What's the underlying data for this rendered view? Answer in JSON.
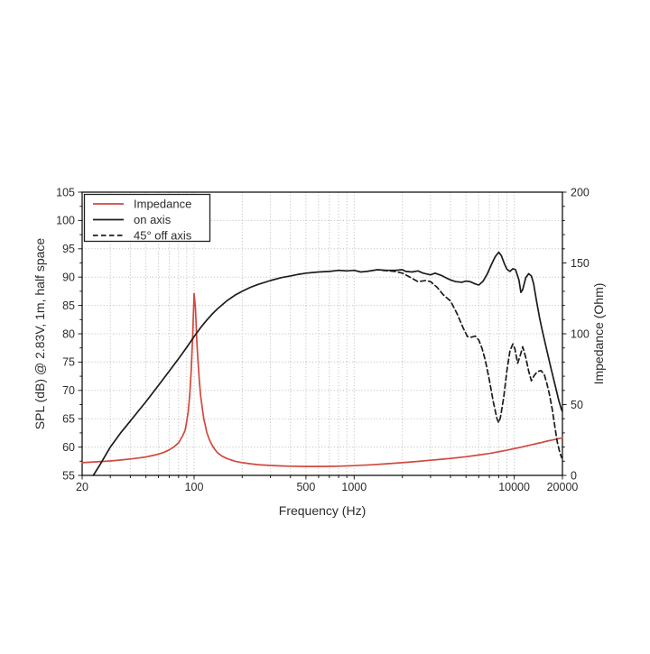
{
  "page": {
    "background": "#ffffff"
  },
  "chart_data": {
    "type": "line",
    "title": "",
    "x_axis": {
      "label": "Frequency (Hz)",
      "scale": "log",
      "min": 20,
      "max": 20000,
      "major_ticks": [
        20,
        100,
        500,
        1000,
        10000,
        20000
      ],
      "major_tick_labels": [
        "20",
        "100",
        "500",
        "1000",
        "10000",
        "20000"
      ],
      "minor_ticks": [
        30,
        40,
        50,
        60,
        70,
        80,
        90,
        200,
        300,
        400,
        600,
        700,
        800,
        900,
        2000,
        3000,
        4000,
        5000,
        6000,
        7000,
        8000,
        9000
      ]
    },
    "y_left": {
      "label": "SPL (dB) @ 2.83V, 1m, half space",
      "min": 55,
      "max": 105,
      "major_step": 5,
      "minor_step": 2.5,
      "major_tick_labels": [
        "55",
        "60",
        "65",
        "70",
        "75",
        "80",
        "85",
        "90",
        "95",
        "100",
        "105"
      ]
    },
    "y_right": {
      "label": "Impedance (Ohm)",
      "min": 0,
      "max": 200,
      "major_step": 50,
      "minor_step": 10,
      "major_tick_labels": [
        "0",
        "50",
        "100",
        "150",
        "200"
      ]
    },
    "grid": {
      "show": true,
      "color": "#b9b9b9",
      "style": "dotted"
    },
    "legend": {
      "position": "upper-left",
      "items": [
        {
          "label": "Impedance",
          "color": "#d1493e",
          "dash": "solid"
        },
        {
          "label": "on axis",
          "color": "#1c1c1c",
          "dash": "solid"
        },
        {
          "label": "45° off axis",
          "color": "#1c1c1c",
          "dash": "dashed"
        }
      ]
    },
    "series": [
      {
        "name": "Impedance",
        "axis": "right",
        "unit": "Ohm",
        "color": "#d1493e",
        "style": "solid",
        "points": [
          [
            20,
            9.0
          ],
          [
            25,
            9.6
          ],
          [
            30,
            10.2
          ],
          [
            35,
            10.9
          ],
          [
            40,
            11.6
          ],
          [
            45,
            12.3
          ],
          [
            50,
            13.0
          ],
          [
            55,
            14.0
          ],
          [
            60,
            15.0
          ],
          [
            65,
            16.4
          ],
          [
            70,
            18.0
          ],
          [
            75,
            20.2
          ],
          [
            80,
            23.0
          ],
          [
            85,
            28.0
          ],
          [
            88,
            32.0
          ],
          [
            90,
            38.0
          ],
          [
            92,
            45.0
          ],
          [
            94,
            57.0
          ],
          [
            96,
            74.0
          ],
          [
            98,
            98.0
          ],
          [
            100,
            128.5
          ],
          [
            102,
            118.0
          ],
          [
            103,
            108.0
          ],
          [
            104,
            95.0
          ],
          [
            106,
            80.0
          ],
          [
            108,
            66.0
          ],
          [
            110,
            56.0
          ],
          [
            113,
            46.0
          ],
          [
            115,
            40.0
          ],
          [
            118,
            34.5
          ],
          [
            120,
            30.5
          ],
          [
            125,
            25.0
          ],
          [
            130,
            21.0
          ],
          [
            135,
            18.2
          ],
          [
            140,
            16.0
          ],
          [
            150,
            13.5
          ],
          [
            160,
            12.0
          ],
          [
            180,
            10.0
          ],
          [
            200,
            9.0
          ],
          [
            225,
            8.2
          ],
          [
            250,
            7.6
          ],
          [
            300,
            7.0
          ],
          [
            350,
            6.7
          ],
          [
            400,
            6.5
          ],
          [
            500,
            6.3
          ],
          [
            600,
            6.3
          ],
          [
            700,
            6.4
          ],
          [
            800,
            6.5
          ],
          [
            1000,
            6.9
          ],
          [
            1300,
            7.5
          ],
          [
            1600,
            8.2
          ],
          [
            2000,
            9.0
          ],
          [
            2500,
            9.9
          ],
          [
            3000,
            10.7
          ],
          [
            3500,
            11.4
          ],
          [
            4000,
            12.0
          ],
          [
            5000,
            13.2
          ],
          [
            6000,
            14.4
          ],
          [
            7000,
            15.5
          ],
          [
            8000,
            16.7
          ],
          [
            9000,
            17.8
          ],
          [
            10000,
            18.9
          ],
          [
            11000,
            19.9
          ],
          [
            12000,
            20.9
          ],
          [
            13000,
            21.8
          ],
          [
            14000,
            22.6
          ],
          [
            15000,
            23.4
          ],
          [
            16000,
            24.2
          ],
          [
            17000,
            24.8
          ],
          [
            18000,
            25.4
          ],
          [
            19000,
            26.0
          ],
          [
            20000,
            26.5
          ]
        ]
      },
      {
        "name": "on axis",
        "axis": "left",
        "unit": "dB",
        "color": "#1c1c1c",
        "style": "solid",
        "points": [
          [
            23.5,
            55.0
          ],
          [
            26,
            57.0
          ],
          [
            30,
            60.0
          ],
          [
            35,
            62.6
          ],
          [
            40,
            64.6
          ],
          [
            45,
            66.4
          ],
          [
            50,
            68.0
          ],
          [
            60,
            70.9
          ],
          [
            70,
            73.4
          ],
          [
            80,
            75.6
          ],
          [
            90,
            77.6
          ],
          [
            100,
            79.5
          ],
          [
            110,
            81.1
          ],
          [
            120,
            82.4
          ],
          [
            130,
            83.5
          ],
          [
            140,
            84.4
          ],
          [
            160,
            85.8
          ],
          [
            180,
            86.8
          ],
          [
            200,
            87.5
          ],
          [
            225,
            88.2
          ],
          [
            250,
            88.7
          ],
          [
            300,
            89.4
          ],
          [
            350,
            89.9
          ],
          [
            400,
            90.2
          ],
          [
            450,
            90.5
          ],
          [
            500,
            90.7
          ],
          [
            600,
            90.9
          ],
          [
            700,
            91.0
          ],
          [
            800,
            91.2
          ],
          [
            900,
            91.1
          ],
          [
            1000,
            91.2
          ],
          [
            1100,
            90.9
          ],
          [
            1200,
            91.0
          ],
          [
            1400,
            91.3
          ],
          [
            1600,
            91.2
          ],
          [
            1800,
            91.2
          ],
          [
            2000,
            91.3
          ],
          [
            2100,
            91.0
          ],
          [
            2300,
            90.9
          ],
          [
            2500,
            91.1
          ],
          [
            2700,
            90.7
          ],
          [
            3000,
            90.4
          ],
          [
            3200,
            90.7
          ],
          [
            3500,
            90.3
          ],
          [
            3800,
            89.8
          ],
          [
            4000,
            89.5
          ],
          [
            4300,
            89.2
          ],
          [
            4700,
            89.1
          ],
          [
            5000,
            89.3
          ],
          [
            5300,
            89.2
          ],
          [
            5700,
            88.8
          ],
          [
            6000,
            88.6
          ],
          [
            6400,
            89.3
          ],
          [
            6800,
            90.6
          ],
          [
            7200,
            92.2
          ],
          [
            7600,
            93.6
          ],
          [
            8000,
            94.4
          ],
          [
            8300,
            93.8
          ],
          [
            8700,
            92.3
          ],
          [
            9000,
            91.4
          ],
          [
            9400,
            91.0
          ],
          [
            9800,
            91.5
          ],
          [
            10200,
            91.3
          ],
          [
            10700,
            89.5
          ],
          [
            11000,
            87.3
          ],
          [
            11300,
            87.8
          ],
          [
            11800,
            89.9
          ],
          [
            12300,
            90.6
          ],
          [
            12800,
            90.2
          ],
          [
            13200,
            88.9
          ],
          [
            13800,
            85.7
          ],
          [
            14400,
            82.8
          ],
          [
            15000,
            80.5
          ],
          [
            16000,
            77.0
          ],
          [
            17000,
            73.8
          ],
          [
            18000,
            70.9
          ],
          [
            19000,
            68.2
          ],
          [
            19800,
            66.5
          ],
          [
            20000,
            66.3
          ]
        ]
      },
      {
        "name": "45° off axis",
        "axis": "left",
        "unit": "dB",
        "color": "#1c1c1c",
        "style": "dashed",
        "points": [
          [
            1500,
            91.2
          ],
          [
            1800,
            91.0
          ],
          [
            2000,
            90.7
          ],
          [
            2200,
            90.1
          ],
          [
            2500,
            89.2
          ],
          [
            2800,
            89.4
          ],
          [
            3000,
            89.2
          ],
          [
            3300,
            88.2
          ],
          [
            3600,
            86.9
          ],
          [
            4000,
            85.8
          ],
          [
            4400,
            83.5
          ],
          [
            4800,
            81.0
          ],
          [
            5100,
            79.5
          ],
          [
            5400,
            79.4
          ],
          [
            5700,
            79.6
          ],
          [
            6000,
            78.9
          ],
          [
            6300,
            77.4
          ],
          [
            6600,
            75.3
          ],
          [
            7000,
            71.8
          ],
          [
            7400,
            68.0
          ],
          [
            7800,
            65.0
          ],
          [
            8000,
            64.3
          ],
          [
            8200,
            65.2
          ],
          [
            8600,
            68.8
          ],
          [
            9000,
            73.5
          ],
          [
            9400,
            77.0
          ],
          [
            9800,
            78.2
          ],
          [
            10100,
            77.3
          ],
          [
            10500,
            74.8
          ],
          [
            10900,
            76.2
          ],
          [
            11300,
            77.7
          ],
          [
            11800,
            75.8
          ],
          [
            12300,
            73.4
          ],
          [
            12800,
            71.7
          ],
          [
            13300,
            72.6
          ],
          [
            13900,
            73.3
          ],
          [
            14700,
            73.5
          ],
          [
            15400,
            72.8
          ],
          [
            16000,
            71.2
          ],
          [
            16600,
            69.3
          ],
          [
            17300,
            66.6
          ],
          [
            18000,
            63.3
          ],
          [
            18600,
            60.8
          ],
          [
            19300,
            58.9
          ],
          [
            19800,
            58.1
          ],
          [
            20000,
            58.3
          ]
        ]
      }
    ]
  }
}
